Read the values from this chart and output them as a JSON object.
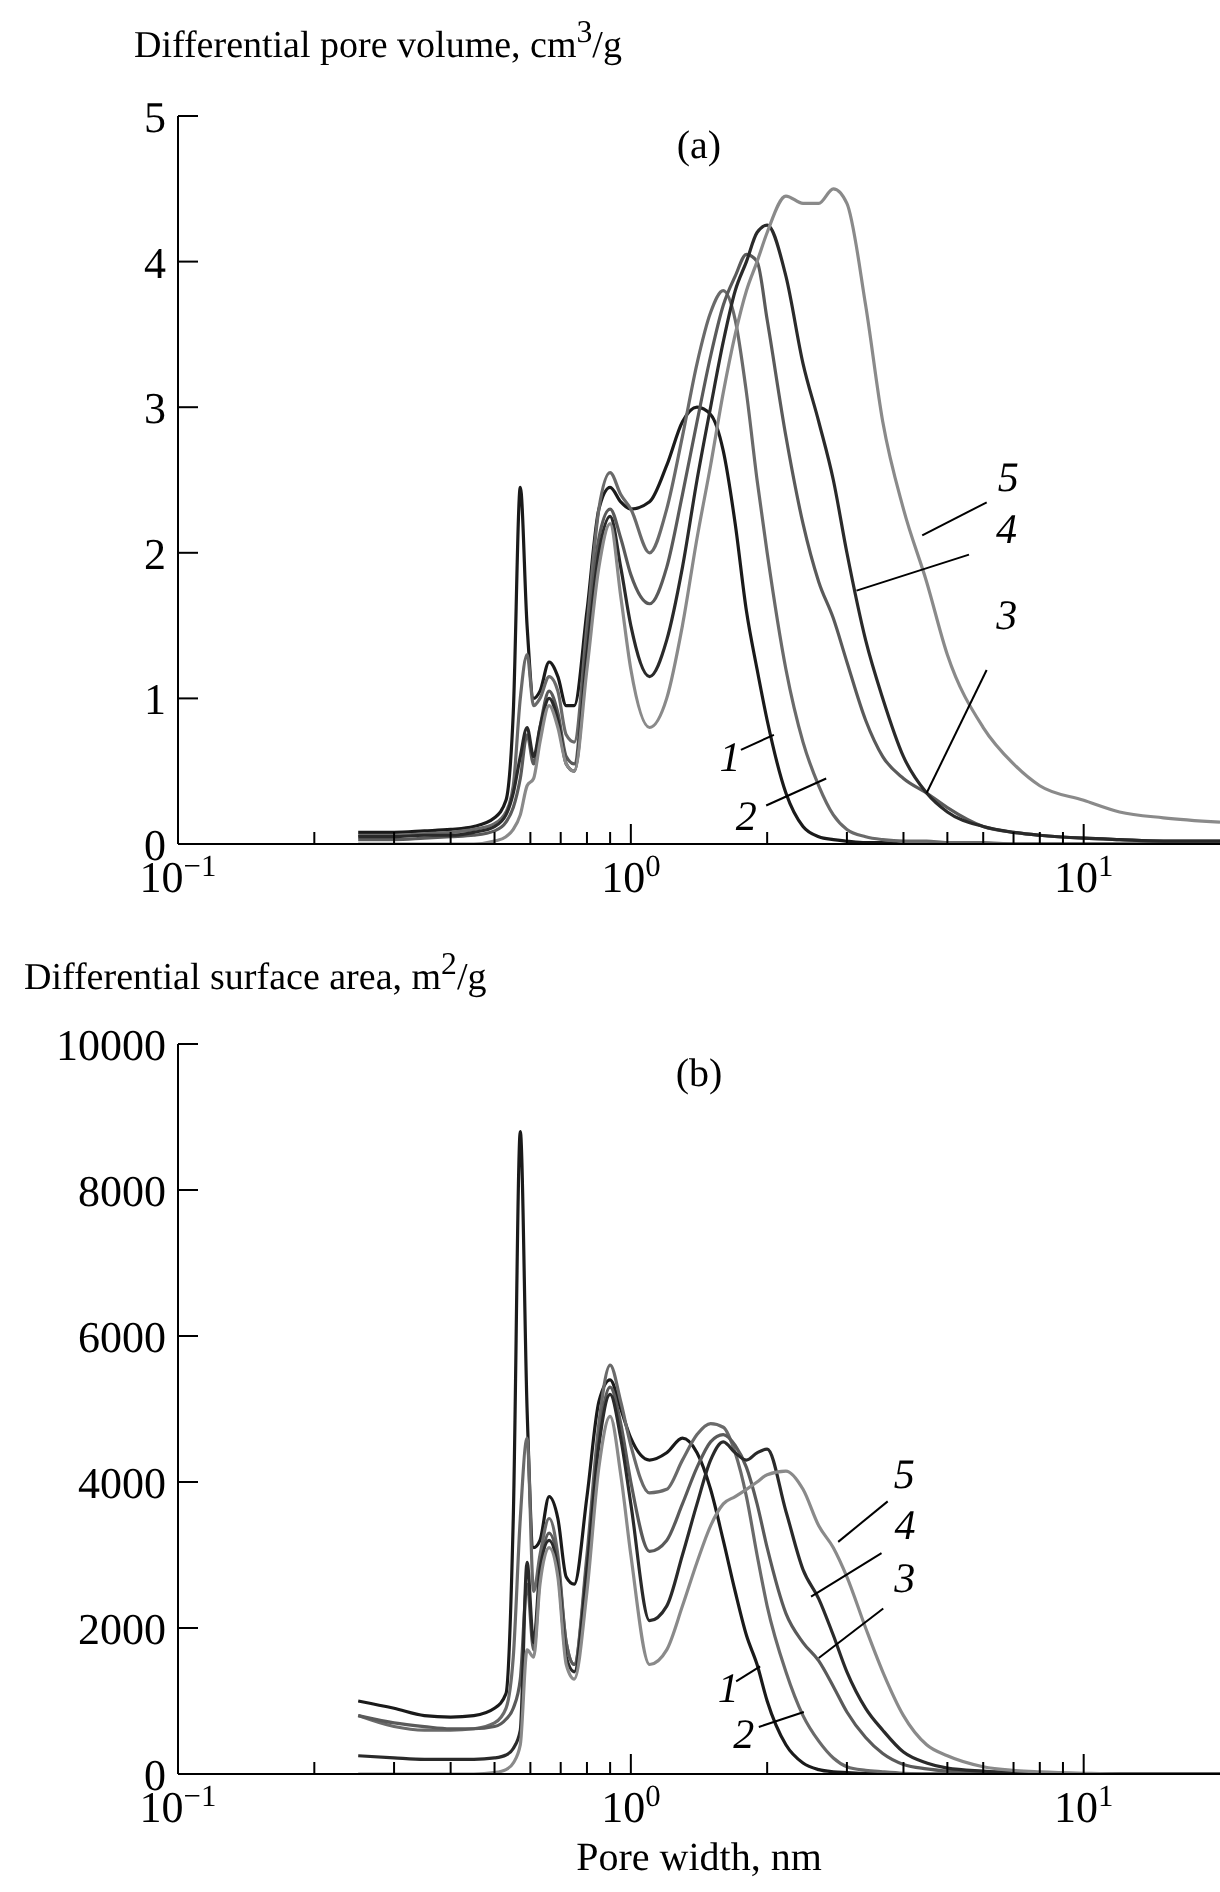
{
  "chart_data": [
    {
      "type": "line",
      "title": "(a)",
      "ylabel": "Differential pore volume, cm$^{3}$/g",
      "log": "x",
      "xlim": [
        0.1,
        20
      ],
      "xticks": [
        {
          "value": 0.1,
          "label": "10$^{−1}$"
        },
        {
          "value": 0.2,
          "label": null
        },
        {
          "value": 0.3,
          "label": null
        },
        {
          "value": 0.4,
          "label": null
        },
        {
          "value": 0.5,
          "label": null
        },
        {
          "value": 0.6,
          "label": null
        },
        {
          "value": 0.7,
          "label": null
        },
        {
          "value": 0.8,
          "label": null
        },
        {
          "value": 0.9,
          "label": null
        },
        {
          "value": 1,
          "label": "10$^{0}$"
        },
        {
          "value": 2,
          "label": null
        },
        {
          "value": 3,
          "label": null
        },
        {
          "value": 4,
          "label": null
        },
        {
          "value": 5,
          "label": null
        },
        {
          "value": 6,
          "label": null
        },
        {
          "value": 7,
          "label": null
        },
        {
          "value": 8,
          "label": null
        },
        {
          "value": 9,
          "label": null
        },
        {
          "value": 10,
          "label": "10$^{1}$"
        }
      ],
      "ylim": [
        0,
        5
      ],
      "yticks": [
        0,
        1,
        2,
        3,
        4,
        5
      ],
      "x": [
        0.25,
        0.3,
        0.35,
        0.4,
        0.45,
        0.5,
        0.53,
        0.55,
        0.57,
        0.59,
        0.61,
        0.63,
        0.66,
        0.69,
        0.72,
        0.75,
        0.8,
        0.85,
        0.9,
        0.95,
        1.0,
        1.1,
        1.2,
        1.3,
        1.4,
        1.5,
        1.6,
        1.7,
        1.8,
        1.9,
        2.0,
        2.2,
        2.4,
        2.6,
        2.8,
        3.0,
        3.3,
        3.6,
        4.0,
        4.5,
        5,
        6,
        7,
        8,
        10,
        12,
        15,
        20
      ],
      "series": [
        {
          "color": "#1a1a1a",
          "values": [
            0.08,
            0.08,
            0.09,
            0.1,
            0.12,
            0.18,
            0.3,
            0.9,
            2.45,
            1.5,
            1.0,
            1.05,
            1.25,
            1.15,
            0.95,
            0.95,
            1.6,
            2.3,
            2.45,
            2.35,
            2.3,
            2.35,
            2.6,
            2.9,
            3.0,
            2.95,
            2.7,
            2.2,
            1.6,
            1.2,
            0.85,
            0.35,
            0.12,
            0.05,
            0.03,
            0.02,
            0.01,
            0.01,
            0,
            0,
            0,
            0,
            0,
            0,
            0,
            0,
            0,
            0
          ]
        },
        {
          "color": "#6a6a6a",
          "values": [
            0.06,
            0.06,
            0.07,
            0.08,
            0.1,
            0.14,
            0.22,
            0.4,
            1.0,
            1.3,
            0.95,
            1.0,
            1.15,
            1.05,
            0.75,
            0.7,
            1.5,
            2.3,
            2.55,
            2.4,
            2.3,
            2.0,
            2.3,
            2.8,
            3.3,
            3.65,
            3.8,
            3.6,
            3.1,
            2.5,
            2.0,
            1.2,
            0.7,
            0.4,
            0.2,
            0.1,
            0.05,
            0.03,
            0.02,
            0.02,
            0.01,
            0.01,
            0,
            0,
            0,
            0,
            0,
            0
          ]
        },
        {
          "color": "#5a5a5a",
          "values": [
            0.03,
            0.03,
            0.04,
            0.05,
            0.06,
            0.09,
            0.15,
            0.25,
            0.45,
            0.75,
            0.55,
            0.8,
            1.05,
            0.9,
            0.6,
            0.55,
            1.4,
            2.1,
            2.3,
            2.1,
            1.85,
            1.65,
            1.9,
            2.4,
            2.9,
            3.35,
            3.7,
            3.9,
            4.05,
            4.0,
            3.6,
            2.8,
            2.2,
            1.8,
            1.55,
            1.25,
            0.85,
            0.6,
            0.45,
            0.35,
            0.25,
            0.12,
            0.08,
            0.06,
            0.04,
            0.03,
            0.02,
            0.02
          ]
        },
        {
          "color": "#2a2a2a",
          "values": [
            0.05,
            0.05,
            0.06,
            0.06,
            0.08,
            0.12,
            0.2,
            0.35,
            0.6,
            0.8,
            0.6,
            0.8,
            1.0,
            0.85,
            0.55,
            0.5,
            1.3,
            2.0,
            2.25,
            1.9,
            1.5,
            1.15,
            1.4,
            1.9,
            2.5,
            3.0,
            3.45,
            3.8,
            4.0,
            4.2,
            4.25,
            3.9,
            3.3,
            2.9,
            2.5,
            2.0,
            1.4,
            1.0,
            0.6,
            0.35,
            0.22,
            0.12,
            0.08,
            0.06,
            0.04,
            0.03,
            0.02,
            0.02
          ]
        },
        {
          "color": "#8a8a8a",
          "values": [
            0,
            0,
            0,
            0,
            0,
            0.02,
            0.05,
            0.1,
            0.2,
            0.4,
            0.45,
            0.7,
            0.95,
            0.8,
            0.55,
            0.5,
            1.2,
            1.9,
            2.2,
            1.7,
            1.2,
            0.8,
            1.0,
            1.5,
            2.1,
            2.6,
            3.1,
            3.5,
            3.8,
            4.0,
            4.2,
            4.45,
            4.4,
            4.4,
            4.5,
            4.4,
            3.7,
            2.9,
            2.3,
            1.8,
            1.3,
            0.8,
            0.55,
            0.4,
            0.3,
            0.22,
            0.18,
            0.15
          ]
        }
      ],
      "annotations": [
        {
          "text": "1",
          "x": 2.07,
          "y": 0.75
        },
        {
          "text": "2",
          "x": 2.7,
          "y": 0.45
        },
        {
          "text": "3",
          "x": 4.5,
          "y": 0.35
        },
        {
          "text": "4",
          "x": 3.15,
          "y": 1.74
        },
        {
          "text": "5",
          "x": 4.4,
          "y": 2.12
        }
      ]
    },
    {
      "type": "line",
      "title": "(b)",
      "ylabel": "Differential surface area, m$^{2}$/g",
      "xlabel": "Pore width, nm",
      "log": "x",
      "xlim": [
        0.1,
        20
      ],
      "xticks": [
        {
          "value": 0.1,
          "label": "10$^{−1}$"
        },
        {
          "value": 0.2,
          "label": null
        },
        {
          "value": 0.3,
          "label": null
        },
        {
          "value": 0.4,
          "label": null
        },
        {
          "value": 0.5,
          "label": null
        },
        {
          "value": 0.6,
          "label": null
        },
        {
          "value": 0.7,
          "label": null
        },
        {
          "value": 0.8,
          "label": null
        },
        {
          "value": 0.9,
          "label": null
        },
        {
          "value": 1,
          "label": "10$^{0}$"
        },
        {
          "value": 2,
          "label": null
        },
        {
          "value": 3,
          "label": null
        },
        {
          "value": 4,
          "label": null
        },
        {
          "value": 5,
          "label": null
        },
        {
          "value": 6,
          "label": null
        },
        {
          "value": 7,
          "label": null
        },
        {
          "value": 8,
          "label": null
        },
        {
          "value": 9,
          "label": null
        },
        {
          "value": 10,
          "label": "10$^{1}$"
        }
      ],
      "ylim": [
        0,
        10000
      ],
      "yticks": [
        0,
        2000,
        4000,
        6000,
        8000,
        10000
      ],
      "x": [
        0.25,
        0.3,
        0.35,
        0.4,
        0.45,
        0.5,
        0.53,
        0.55,
        0.57,
        0.59,
        0.61,
        0.63,
        0.66,
        0.69,
        0.72,
        0.75,
        0.8,
        0.85,
        0.9,
        0.95,
        1.0,
        1.1,
        1.2,
        1.3,
        1.4,
        1.5,
        1.6,
        1.7,
        1.8,
        1.9,
        2.0,
        2.2,
        2.4,
        2.6,
        2.8,
        3.0,
        3.3,
        3.6,
        4.0,
        4.5,
        5,
        6,
        7,
        8,
        10,
        12,
        15,
        20
      ],
      "series": [
        {
          "color": "#1a1a1a",
          "values": [
            1000,
            900,
            800,
            780,
            800,
            900,
            1100,
            3500,
            8800,
            5000,
            3100,
            3200,
            3800,
            3500,
            2700,
            2600,
            3800,
            5100,
            5400,
            5000,
            4600,
            4300,
            4400,
            4600,
            4400,
            3900,
            3200,
            2500,
            1900,
            1500,
            1000,
            400,
            150,
            60,
            30,
            20,
            10,
            10,
            0,
            0,
            0,
            0,
            0,
            0,
            0,
            0,
            0,
            0
          ]
        },
        {
          "color": "#6a6a6a",
          "values": [
            800,
            650,
            600,
            600,
            620,
            700,
            900,
            1600,
            3500,
            4600,
            2500,
            3000,
            3500,
            3000,
            1800,
            1500,
            3000,
            4800,
            5600,
            5100,
            4500,
            3850,
            3900,
            4300,
            4650,
            4800,
            4750,
            4400,
            3800,
            3000,
            2300,
            1400,
            800,
            450,
            220,
            100,
            50,
            30,
            10,
            0,
            0,
            0,
            0,
            0,
            0,
            0,
            0,
            0
          ]
        },
        {
          "color": "#5a5a5a",
          "values": [
            800,
            700,
            650,
            620,
            620,
            650,
            750,
            900,
            1300,
            2600,
            1700,
            2700,
            3300,
            2900,
            1800,
            1500,
            2900,
            4600,
            5300,
            4800,
            4000,
            3050,
            3200,
            3700,
            4200,
            4550,
            4650,
            4500,
            4200,
            3700,
            3100,
            2200,
            1800,
            1550,
            1200,
            850,
            500,
            280,
            130,
            70,
            40,
            20,
            10,
            0,
            0,
            0,
            0,
            0
          ]
        },
        {
          "color": "#2a2a2a",
          "values": [
            250,
            220,
            200,
            200,
            200,
            220,
            260,
            350,
            600,
            2900,
            1800,
            2800,
            3200,
            2800,
            1600,
            1400,
            2800,
            4500,
            5200,
            4600,
            3700,
            2100,
            2300,
            3000,
            3700,
            4300,
            4550,
            4400,
            4300,
            4400,
            4450,
            3600,
            2800,
            2400,
            1900,
            1400,
            900,
            600,
            300,
            150,
            80,
            40,
            20,
            10,
            0,
            0,
            0,
            0
          ]
        },
        {
          "color": "#8a8a8a",
          "values": [
            0,
            0,
            0,
            0,
            0,
            20,
            60,
            150,
            400,
            1700,
            1600,
            2600,
            3100,
            2700,
            1500,
            1300,
            2500,
            4200,
            4900,
            4100,
            3000,
            1500,
            1700,
            2300,
            2900,
            3400,
            3700,
            3800,
            3900,
            4000,
            4100,
            4150,
            3900,
            3400,
            3100,
            2700,
            2000,
            1400,
            800,
            400,
            250,
            100,
            50,
            30,
            10,
            0,
            0,
            0
          ]
        }
      ],
      "annotations": [
        {
          "text": "1",
          "x": 1.93,
          "y": 1475
        },
        {
          "text": "2",
          "x": 2.41,
          "y": 850
        },
        {
          "text": "3",
          "x": 2.6,
          "y": 1590
        },
        {
          "text": "4",
          "x": 2.5,
          "y": 2430
        },
        {
          "text": "5",
          "x": 2.87,
          "y": 3180
        }
      ]
    }
  ]
}
